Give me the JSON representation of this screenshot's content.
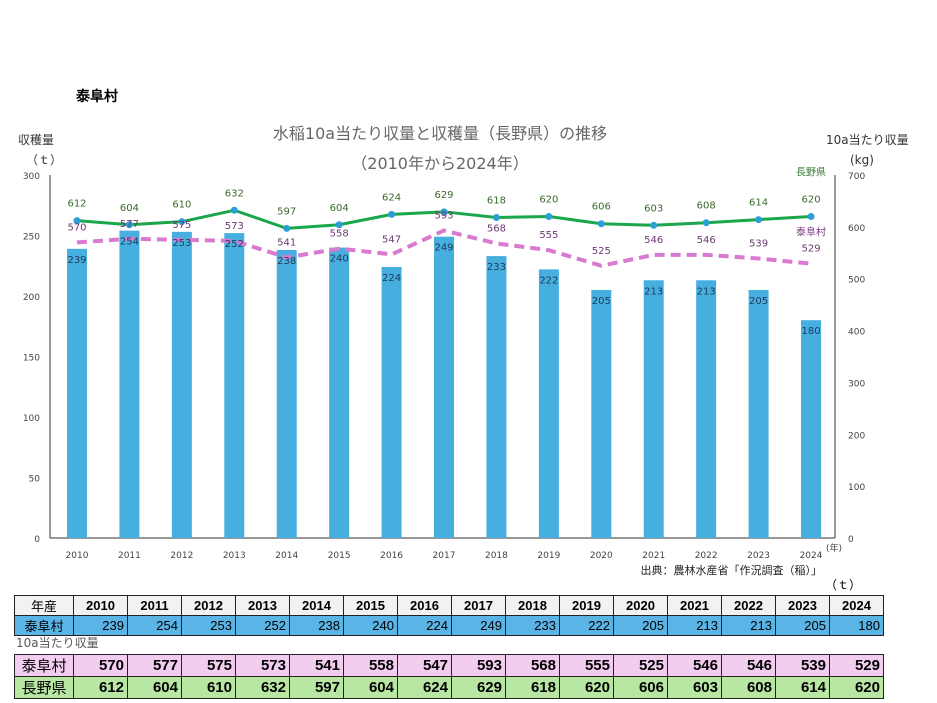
{
  "page_title": "泰阜村",
  "chart_data": {
    "type": "bar+line",
    "title": "水稲10a当たり収量と収穫量（長野県）の推移",
    "subtitle": "（2010年から2024年）",
    "ylabel_left": "収穫量",
    "ylabel_left_unit": "（ｔ）",
    "ylabel_right": "10a当たり収量",
    "ylabel_right_unit": "(kg)",
    "xlabel_unit": "(年)",
    "ylim_left": [
      0,
      300
    ],
    "ylim_right": [
      0,
      700
    ],
    "yticks_left": [
      0,
      50,
      100,
      150,
      200,
      250,
      300
    ],
    "yticks_right": [
      0,
      100,
      200,
      300,
      400,
      500,
      600,
      700
    ],
    "categories": [
      "2010",
      "2011",
      "2012",
      "2013",
      "2014",
      "2015",
      "2016",
      "2017",
      "2018",
      "2019",
      "2020",
      "2021",
      "2022",
      "2023",
      "2024"
    ],
    "bar_series": {
      "name": "収穫量",
      "axis": "left",
      "color": "#47aee0",
      "values": [
        239,
        254,
        253,
        252,
        238,
        240,
        224,
        249,
        233,
        222,
        205,
        213,
        213,
        205,
        180
      ]
    },
    "line_series": [
      {
        "name": "長野県",
        "axis": "right",
        "color": "#1aa64a",
        "marker_color": "#2b9fd6",
        "style": "solid",
        "values": [
          612,
          604,
          610,
          632,
          597,
          604,
          624,
          629,
          618,
          620,
          606,
          603,
          608,
          614,
          620
        ]
      },
      {
        "name": "泰阜村",
        "axis": "right",
        "color": "#d77ad0",
        "style": "dashed",
        "values": [
          570,
          577,
          575,
          573,
          541,
          558,
          547,
          593,
          568,
          555,
          525,
          546,
          546,
          539,
          529
        ]
      }
    ],
    "source": "出典：農林水産省「作況調査（稲）」"
  },
  "table": {
    "unit": "（ｔ）",
    "header_label": "年産",
    "harvest_label": "泰阜村",
    "yield_caption": "10a当たり収量",
    "yield_rows": [
      {
        "label": "泰阜村"
      },
      {
        "label": "長野県"
      }
    ]
  }
}
